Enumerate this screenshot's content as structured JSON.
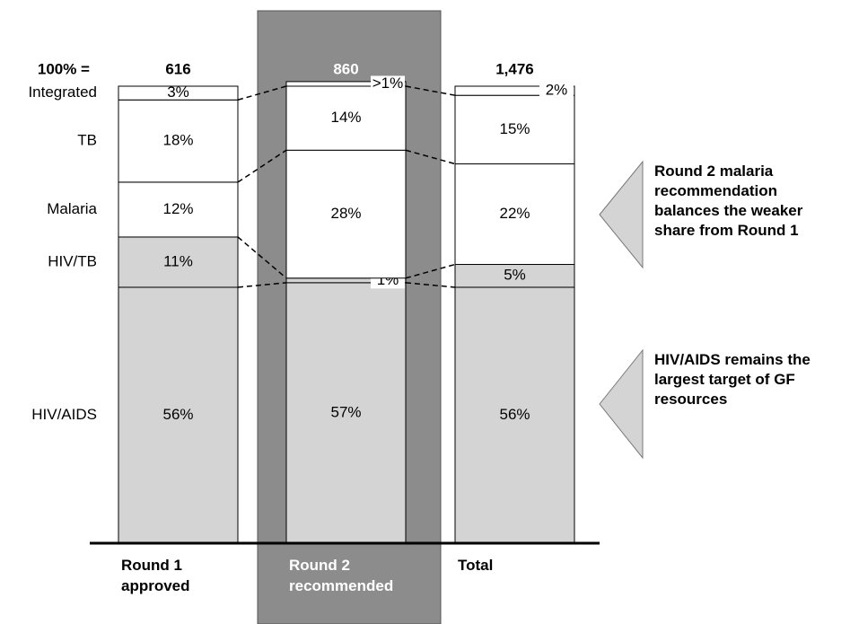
{
  "chart_data": {
    "type": "stacked_bar",
    "categories": [
      "Round 1 approved",
      "Round 2 recommended",
      "Total"
    ],
    "total_label": "100% =",
    "totals": [
      {
        "value": 616,
        "label": "616"
      },
      {
        "value": 860,
        "label": "860"
      },
      {
        "value": 1476,
        "label": "1,476"
      }
    ],
    "ylim": [
      0,
      100
    ],
    "highlight_category": 1,
    "series": [
      {
        "name": "HIV/AIDS",
        "color": "#d4d4d4",
        "values": [
          56,
          57,
          56
        ],
        "value_labels": [
          "56%",
          "57%",
          "56%"
        ]
      },
      {
        "name": "HIV/TB",
        "color": "#d4d4d4",
        "values": [
          11,
          1,
          5
        ],
        "value_labels": [
          "11%",
          "1%",
          "5%"
        ]
      },
      {
        "name": "Malaria",
        "color": "#ffffff",
        "values": [
          12,
          28,
          22
        ],
        "value_labels": [
          "12%",
          "28%",
          "22%"
        ]
      },
      {
        "name": "TB",
        "color": "#ffffff",
        "values": [
          18,
          14,
          15
        ],
        "value_labels": [
          "18%",
          "14%",
          "15%"
        ]
      },
      {
        "name": "Integrated",
        "color": "#ffffff",
        "values": [
          3,
          1,
          2
        ],
        "value_labels": [
          "3%",
          ">1%",
          "2%"
        ]
      }
    ],
    "annotations": [
      "Round 2 malaria recommendation balances the weaker share from Round 1",
      "HIV/AIDS remains the largest target of GF resources"
    ]
  }
}
